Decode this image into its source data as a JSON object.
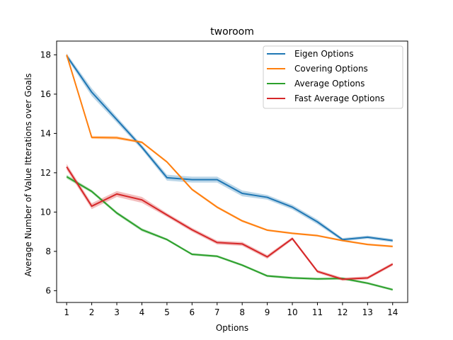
{
  "chart_data": {
    "type": "line",
    "title": "tworoom",
    "xlabel": "Options",
    "ylabel": "Average Number of Value Itterations over Goals",
    "x": [
      1,
      2,
      3,
      4,
      5,
      6,
      7,
      8,
      9,
      10,
      11,
      12,
      13,
      14
    ],
    "xlim": [
      0.6,
      14.6
    ],
    "ylim": [
      5.4,
      18.7
    ],
    "yticks": [
      6,
      8,
      10,
      12,
      14,
      16,
      18
    ],
    "legend": "top-right",
    "grid": false,
    "series": [
      {
        "name": "Eigen Options",
        "color": "#1f77b4",
        "values": [
          17.95,
          16.1,
          14.7,
          13.3,
          11.75,
          11.65,
          11.65,
          10.95,
          10.75,
          10.25,
          9.5,
          8.6,
          8.72,
          8.55
        ],
        "band": [
          0.12,
          0.2,
          0.15,
          0.12,
          0.15,
          0.15,
          0.15,
          0.15,
          0.12,
          0.12,
          0.12,
          0.08,
          0.08,
          0.08
        ]
      },
      {
        "name": "Covering Options",
        "color": "#ff7f0e",
        "values": [
          18.0,
          13.8,
          13.78,
          13.55,
          12.55,
          11.15,
          10.25,
          9.55,
          9.08,
          8.92,
          8.8,
          8.55,
          8.35,
          8.25
        ],
        "band": [
          0.08,
          0.08,
          0.08,
          0.06,
          0.06,
          0.06,
          0.06,
          0.06,
          0.05,
          0.05,
          0.05,
          0.05,
          0.05,
          0.05
        ]
      },
      {
        "name": "Average Options",
        "color": "#2ca02c",
        "values": [
          11.8,
          11.05,
          9.95,
          9.1,
          8.6,
          7.85,
          7.75,
          7.3,
          6.75,
          6.65,
          6.6,
          6.62,
          6.38,
          6.05
        ],
        "band": [
          0.1,
          0.08,
          0.08,
          0.08,
          0.06,
          0.06,
          0.06,
          0.06,
          0.06,
          0.06,
          0.06,
          0.06,
          0.06,
          0.06
        ]
      },
      {
        "name": "Fast Average Options",
        "color": "#d62728",
        "values": [
          12.3,
          10.3,
          10.92,
          10.62,
          9.85,
          9.1,
          8.45,
          8.38,
          7.72,
          8.65,
          6.98,
          6.58,
          6.65,
          7.35
        ],
        "band": [
          0.15,
          0.15,
          0.15,
          0.15,
          0.1,
          0.1,
          0.1,
          0.1,
          0.1,
          0.08,
          0.08,
          0.08,
          0.08,
          0.08
        ]
      }
    ]
  }
}
